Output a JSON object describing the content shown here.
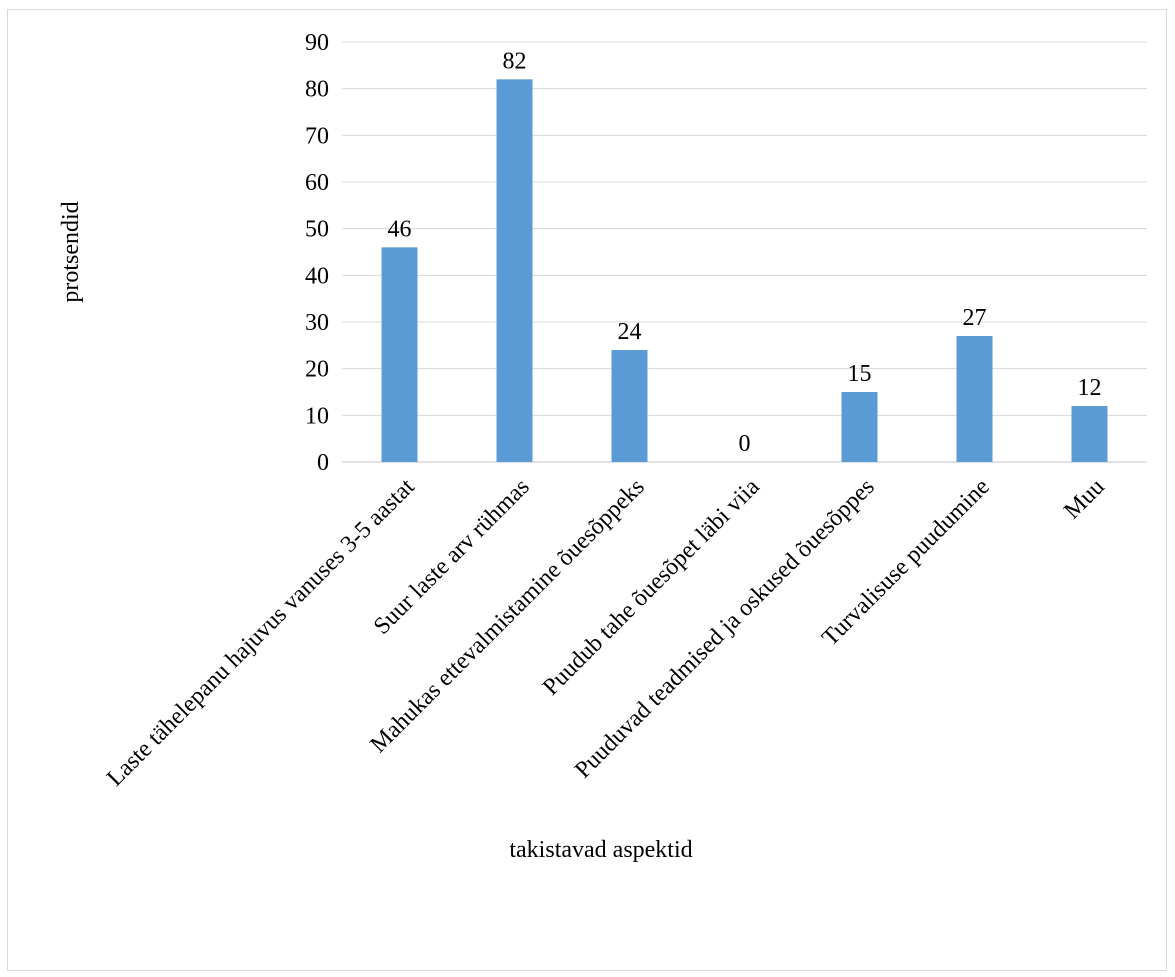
{
  "chart_data": {
    "type": "bar",
    "title": "",
    "xlabel": "takistavad aspektid",
    "ylabel": "protsendid",
    "ylim": [
      0,
      90
    ],
    "yticks": [
      0,
      10,
      20,
      30,
      40,
      50,
      60,
      70,
      80,
      90
    ],
    "grid": true,
    "legend": "none",
    "bar_color": "#5b9bd5",
    "categories": [
      "Laste tähelepanu hajuvus vanuses 3-5 aastat",
      "Suur laste arv rühmas",
      "Mahukas ettevalmistamine õuesõppeks",
      "Puudub tahe õuesõpet läbi viia",
      "Puuduvad teadmised ja oskused õuesõppes",
      "Turvalisuse puudumine",
      "Muu"
    ],
    "values": [
      46,
      82,
      24,
      0,
      15,
      27,
      12
    ],
    "data_labels": [
      "46",
      "82",
      "24",
      "0",
      "15",
      "27",
      "12"
    ]
  }
}
